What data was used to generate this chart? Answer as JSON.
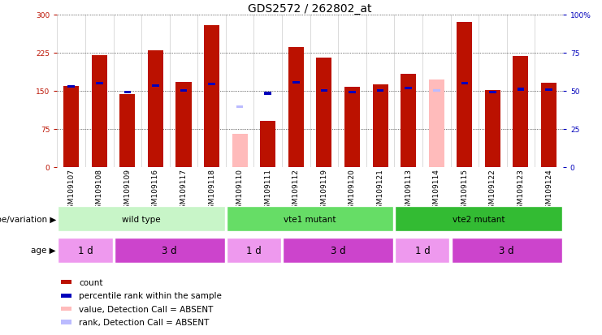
{
  "title": "GDS2572 / 262802_at",
  "samples": [
    "GSM109107",
    "GSM109108",
    "GSM109109",
    "GSM109116",
    "GSM109117",
    "GSM109118",
    "GSM109110",
    "GSM109111",
    "GSM109112",
    "GSM109119",
    "GSM109120",
    "GSM109121",
    "GSM109113",
    "GSM109114",
    "GSM109115",
    "GSM109122",
    "GSM109123",
    "GSM109124"
  ],
  "count_values": [
    160,
    220,
    143,
    230,
    168,
    278,
    0,
    90,
    235,
    215,
    158,
    163,
    183,
    178,
    285,
    152,
    218,
    165
  ],
  "rank_values": [
    158,
    165,
    147,
    160,
    151,
    163,
    120,
    145,
    166,
    151,
    148,
    151,
    155,
    155,
    165,
    148,
    153,
    152
  ],
  "absent_mask": [
    0,
    0,
    0,
    0,
    0,
    0,
    1,
    0,
    0,
    0,
    0,
    0,
    0,
    1,
    0,
    0,
    0,
    0
  ],
  "absent_count": [
    0,
    0,
    0,
    0,
    0,
    0,
    65,
    0,
    0,
    0,
    0,
    0,
    0,
    172,
    0,
    0,
    0,
    0
  ],
  "absent_rank": [
    0,
    0,
    0,
    0,
    0,
    0,
    118,
    0,
    0,
    0,
    0,
    0,
    0,
    150,
    0,
    0,
    0,
    0
  ],
  "ylim": [
    0,
    300
  ],
  "yticks_left": [
    0,
    75,
    150,
    225,
    300
  ],
  "right_tick_positions": [
    0,
    75,
    150,
    225,
    300
  ],
  "right_tick_labels": [
    "0",
    "25",
    "50",
    "75",
    "100%"
  ],
  "groups": [
    {
      "label": "wild type",
      "start": 0,
      "end": 6,
      "color": "#c8f5c8"
    },
    {
      "label": "vte1 mutant",
      "start": 6,
      "end": 12,
      "color": "#66dd66"
    },
    {
      "label": "vte2 mutant",
      "start": 12,
      "end": 18,
      "color": "#33bb33"
    }
  ],
  "age_groups": [
    {
      "label": "1 d",
      "start": 0,
      "end": 2,
      "color": "#ee99ee"
    },
    {
      "label": "3 d",
      "start": 2,
      "end": 6,
      "color": "#cc44cc"
    },
    {
      "label": "1 d",
      "start": 6,
      "end": 8,
      "color": "#ee99ee"
    },
    {
      "label": "3 d",
      "start": 8,
      "end": 12,
      "color": "#cc44cc"
    },
    {
      "label": "1 d",
      "start": 12,
      "end": 14,
      "color": "#ee99ee"
    },
    {
      "label": "3 d",
      "start": 14,
      "end": 18,
      "color": "#cc44cc"
    }
  ],
  "bar_color_present": "#bb1100",
  "bar_color_absent": "#ffbbbb",
  "rank_color_present": "#0000bb",
  "rank_color_absent": "#bbbbff",
  "bar_width": 0.55,
  "bg_color": "#ffffff",
  "plot_bg": "#ffffff",
  "title_fontsize": 10,
  "tick_fontsize": 6.5,
  "label_fontsize": 7.5,
  "legend_fontsize": 7.5
}
